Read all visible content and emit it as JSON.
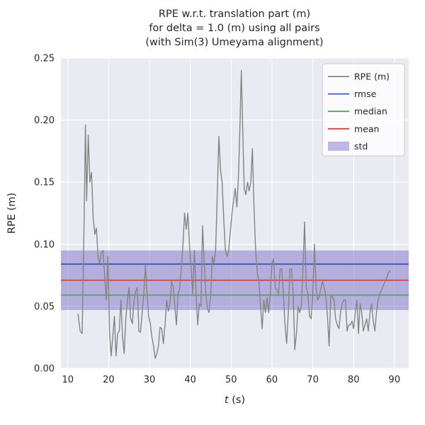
{
  "chart_data": {
    "type": "line",
    "title_lines": [
      "RPE w.r.t. translation part (m)",
      "for delta = 1.0 (m) using all pairs",
      "(with Sim(3) Umeyama alignment)"
    ],
    "xlabel": "t (s)",
    "xlabel_parts": [
      {
        "text": "t",
        "italic": true
      },
      {
        "text": " (s)",
        "italic": false
      }
    ],
    "ylabel": "RPE (m)",
    "xlim": [
      8.3,
      93.5
    ],
    "ylim": [
      0.0,
      0.25
    ],
    "x_ticks": {
      "values": [
        10,
        20,
        30,
        40,
        50,
        60,
        70,
        80,
        90
      ],
      "labels": [
        "10",
        "20",
        "30",
        "40",
        "50",
        "60",
        "70",
        "80",
        "90"
      ]
    },
    "y_ticks": {
      "values": [
        0.0,
        0.05,
        0.1,
        0.15,
        0.2,
        0.25
      ],
      "labels": [
        "0.00",
        "0.05",
        "0.10",
        "0.15",
        "0.20",
        "0.25"
      ]
    },
    "grid": true,
    "legend_position": "upper right",
    "colors": {
      "axes_background": "#eaeaf2",
      "grid": "#ffffff",
      "rpe_line": "#848484",
      "rmse": "#3e58b8",
      "median": "#4aaa50",
      "mean": "#cc4444",
      "std_band": "#796cc4",
      "tick_label": "#262626"
    },
    "stats": {
      "rmse": 0.084,
      "median": 0.059,
      "mean": 0.071,
      "std": 0.024
    },
    "std_band_range": [
      0.047,
      0.095
    ],
    "stat_lines": [
      {
        "name": "rmse",
        "value": 0.084,
        "color": "#3e58b8"
      },
      {
        "name": "median",
        "value": 0.059,
        "color": "#4aaa50"
      },
      {
        "name": "mean",
        "value": 0.071,
        "color": "#cc4444"
      }
    ],
    "legend_entries": [
      {
        "label": "RPE (m)",
        "kind": "line",
        "color": "#848484"
      },
      {
        "label": "rmse",
        "kind": "line",
        "color": "#3e58b8"
      },
      {
        "label": "median",
        "kind": "line",
        "color": "#4aaa50"
      },
      {
        "label": "mean",
        "kind": "line",
        "color": "#cc4444"
      },
      {
        "label": "std",
        "kind": "patch",
        "color": "#796cc4"
      }
    ],
    "series": [
      {
        "name": "RPE (m)",
        "color": "#848484",
        "points": [
          [
            12.5,
            0.044
          ],
          [
            13.0,
            0.03
          ],
          [
            13.5,
            0.028
          ],
          [
            14.0,
            0.12
          ],
          [
            14.3,
            0.196
          ],
          [
            14.6,
            0.135
          ],
          [
            15.0,
            0.188
          ],
          [
            15.4,
            0.15
          ],
          [
            15.8,
            0.158
          ],
          [
            16.2,
            0.122
          ],
          [
            16.6,
            0.108
          ],
          [
            17.0,
            0.113
          ],
          [
            17.4,
            0.09
          ],
          [
            17.8,
            0.085
          ],
          [
            18.2,
            0.093
          ],
          [
            18.6,
            0.095
          ],
          [
            19.0,
            0.075
          ],
          [
            19.4,
            0.055
          ],
          [
            19.8,
            0.09
          ],
          [
            20.2,
            0.03
          ],
          [
            20.6,
            0.01
          ],
          [
            21.0,
            0.025
          ],
          [
            21.4,
            0.042
          ],
          [
            21.8,
            0.01
          ],
          [
            22.2,
            0.028
          ],
          [
            22.6,
            0.03
          ],
          [
            23.0,
            0.055
          ],
          [
            23.4,
            0.025
          ],
          [
            23.8,
            0.012
          ],
          [
            24.2,
            0.04
          ],
          [
            24.6,
            0.055
          ],
          [
            25.0,
            0.065
          ],
          [
            25.4,
            0.04
          ],
          [
            25.8,
            0.036
          ],
          [
            26.2,
            0.055
          ],
          [
            26.6,
            0.062
          ],
          [
            27.0,
            0.065
          ],
          [
            27.4,
            0.03
          ],
          [
            27.8,
            0.029
          ],
          [
            28.2,
            0.045
          ],
          [
            28.6,
            0.06
          ],
          [
            29.0,
            0.083
          ],
          [
            29.4,
            0.06
          ],
          [
            29.8,
            0.042
          ],
          [
            30.2,
            0.036
          ],
          [
            30.6,
            0.025
          ],
          [
            31.0,
            0.018
          ],
          [
            31.4,
            0.008
          ],
          [
            31.8,
            0.012
          ],
          [
            32.2,
            0.018
          ],
          [
            32.6,
            0.033
          ],
          [
            33.0,
            0.032
          ],
          [
            33.4,
            0.02
          ],
          [
            33.8,
            0.035
          ],
          [
            34.2,
            0.055
          ],
          [
            34.6,
            0.046
          ],
          [
            35.0,
            0.052
          ],
          [
            35.4,
            0.07
          ],
          [
            35.8,
            0.066
          ],
          [
            36.2,
            0.05
          ],
          [
            36.6,
            0.035
          ],
          [
            37.0,
            0.06
          ],
          [
            37.4,
            0.064
          ],
          [
            37.8,
            0.08
          ],
          [
            38.2,
            0.1
          ],
          [
            38.6,
            0.125
          ],
          [
            39.0,
            0.112
          ],
          [
            39.4,
            0.125
          ],
          [
            39.8,
            0.1
          ],
          [
            40.2,
            0.08
          ],
          [
            40.6,
            0.06
          ],
          [
            41.0,
            0.095
          ],
          [
            41.4,
            0.06
          ],
          [
            41.8,
            0.035
          ],
          [
            42.2,
            0.052
          ],
          [
            42.6,
            0.05
          ],
          [
            43.0,
            0.115
          ],
          [
            43.4,
            0.085
          ],
          [
            43.8,
            0.06
          ],
          [
            44.2,
            0.048
          ],
          [
            44.6,
            0.045
          ],
          [
            45.0,
            0.06
          ],
          [
            45.4,
            0.09
          ],
          [
            45.8,
            0.085
          ],
          [
            46.2,
            0.095
          ],
          [
            46.6,
            0.14
          ],
          [
            47.0,
            0.187
          ],
          [
            47.4,
            0.16
          ],
          [
            47.8,
            0.15
          ],
          [
            48.2,
            0.12
          ],
          [
            48.6,
            0.095
          ],
          [
            49.0,
            0.09
          ],
          [
            49.4,
            0.095
          ],
          [
            49.8,
            0.11
          ],
          [
            50.2,
            0.125
          ],
          [
            50.6,
            0.135
          ],
          [
            51.0,
            0.145
          ],
          [
            51.4,
            0.13
          ],
          [
            51.8,
            0.155
          ],
          [
            52.2,
            0.2
          ],
          [
            52.5,
            0.24
          ],
          [
            52.9,
            0.185
          ],
          [
            53.2,
            0.145
          ],
          [
            53.6,
            0.14
          ],
          [
            54.0,
            0.15
          ],
          [
            54.4,
            0.143
          ],
          [
            54.8,
            0.15
          ],
          [
            55.2,
            0.177
          ],
          [
            55.6,
            0.13
          ],
          [
            56.0,
            0.095
          ],
          [
            56.4,
            0.077
          ],
          [
            56.8,
            0.07
          ],
          [
            57.2,
            0.05
          ],
          [
            57.6,
            0.032
          ],
          [
            58.0,
            0.055
          ],
          [
            58.4,
            0.045
          ],
          [
            58.8,
            0.057
          ],
          [
            59.2,
            0.045
          ],
          [
            59.6,
            0.06
          ],
          [
            60.0,
            0.085
          ],
          [
            60.4,
            0.088
          ],
          [
            60.8,
            0.065
          ],
          [
            61.2,
            0.063
          ],
          [
            61.6,
            0.06
          ],
          [
            62.0,
            0.08
          ],
          [
            62.4,
            0.08
          ],
          [
            62.8,
            0.06
          ],
          [
            63.2,
            0.035
          ],
          [
            63.6,
            0.02
          ],
          [
            64.0,
            0.045
          ],
          [
            64.4,
            0.08
          ],
          [
            64.8,
            0.08
          ],
          [
            65.2,
            0.06
          ],
          [
            65.6,
            0.015
          ],
          [
            66.0,
            0.028
          ],
          [
            66.4,
            0.05
          ],
          [
            66.8,
            0.045
          ],
          [
            67.2,
            0.05
          ],
          [
            67.6,
            0.08
          ],
          [
            68.0,
            0.118
          ],
          [
            68.4,
            0.065
          ],
          [
            68.8,
            0.06
          ],
          [
            69.2,
            0.042
          ],
          [
            69.6,
            0.04
          ],
          [
            70.0,
            0.06
          ],
          [
            70.4,
            0.1
          ],
          [
            70.8,
            0.065
          ],
          [
            71.2,
            0.055
          ],
          [
            71.6,
            0.058
          ],
          [
            72.0,
            0.065
          ],
          [
            72.4,
            0.07
          ],
          [
            72.8,
            0.065
          ],
          [
            73.2,
            0.058
          ],
          [
            73.6,
            0.042
          ],
          [
            74.0,
            0.018
          ],
          [
            74.4,
            0.058
          ],
          [
            74.8,
            0.058
          ],
          [
            75.2,
            0.055
          ],
          [
            75.6,
            0.04
          ],
          [
            76.0,
            0.035
          ],
          [
            76.4,
            0.032
          ],
          [
            76.8,
            0.045
          ],
          [
            77.2,
            0.052
          ],
          [
            77.6,
            0.055
          ],
          [
            78.0,
            0.055
          ],
          [
            78.4,
            0.03
          ],
          [
            78.8,
            0.035
          ],
          [
            79.2,
            0.035
          ],
          [
            79.6,
            0.038
          ],
          [
            80.0,
            0.032
          ],
          [
            80.4,
            0.045
          ],
          [
            80.8,
            0.055
          ],
          [
            81.2,
            0.028
          ],
          [
            81.6,
            0.052
          ],
          [
            82.0,
            0.045
          ],
          [
            82.4,
            0.03
          ],
          [
            82.8,
            0.035
          ],
          [
            83.2,
            0.04
          ],
          [
            83.6,
            0.03
          ],
          [
            84.0,
            0.045
          ],
          [
            84.4,
            0.052
          ],
          [
            84.8,
            0.038
          ],
          [
            85.2,
            0.03
          ],
          [
            85.6,
            0.045
          ],
          [
            86.0,
            0.055
          ],
          [
            86.4,
            0.06
          ],
          [
            86.8,
            0.063
          ],
          [
            87.2,
            0.066
          ],
          [
            87.6,
            0.069
          ],
          [
            88.0,
            0.072
          ],
          [
            88.4,
            0.076
          ],
          [
            89.0,
            0.079
          ]
        ]
      }
    ]
  }
}
